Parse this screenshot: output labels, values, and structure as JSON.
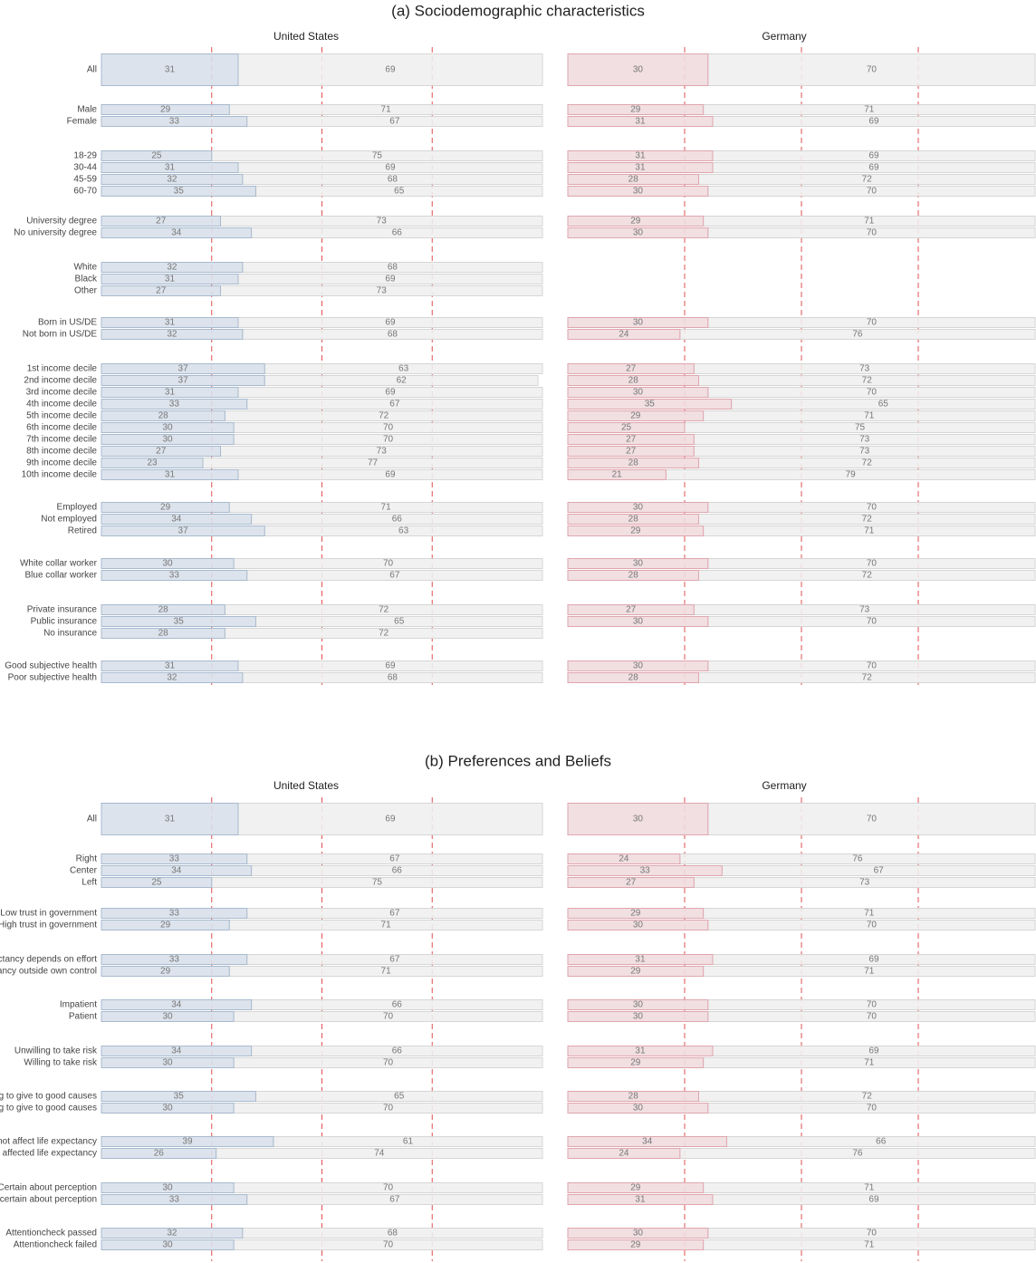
{
  "chart_data": {
    "type": "stacked-bar",
    "xlim": [
      0,
      100
    ],
    "ref_lines": [
      25,
      50,
      75
    ],
    "countries": [
      {
        "name": "United States",
        "color": "#d8e0ea",
        "stroke": "#a8bace"
      },
      {
        "name": "Germany",
        "color": "#efdcdf",
        "stroke": "#dfa6ae"
      }
    ],
    "rest_color": "#efefef",
    "rest_stroke": "#d6d6d6",
    "ref_color": "#e05050",
    "panels": [
      {
        "title": "(a) Sociodemographic characteristics",
        "groups": [
          [
            {
              "label": "All",
              "values": [
                [
                  31,
                  69
                ],
                [
                  30,
                  70
                ]
              ]
            }
          ],
          [
            {
              "label": "Male",
              "values": [
                [
                  29,
                  71
                ],
                [
                  29,
                  71
                ]
              ]
            },
            {
              "label": "Female",
              "values": [
                [
                  33,
                  67
                ],
                [
                  31,
                  69
                ]
              ]
            }
          ],
          [
            {
              "label": "18-29",
              "values": [
                [
                  25,
                  75
                ],
                [
                  31,
                  69
                ]
              ]
            },
            {
              "label": "30-44",
              "values": [
                [
                  31,
                  69
                ],
                [
                  31,
                  69
                ]
              ]
            },
            {
              "label": "45-59",
              "values": [
                [
                  32,
                  68
                ],
                [
                  28,
                  72
                ]
              ]
            },
            {
              "label": "60-70",
              "values": [
                [
                  35,
                  65
                ],
                [
                  30,
                  70
                ]
              ]
            }
          ],
          [
            {
              "label": "University degree",
              "values": [
                [
                  27,
                  73
                ],
                [
                  29,
                  71
                ]
              ]
            },
            {
              "label": "No university degree",
              "values": [
                [
                  34,
                  66
                ],
                [
                  30,
                  70
                ]
              ]
            }
          ],
          [
            {
              "label": "White",
              "values": [
                [
                  32,
                  68
                ],
                null
              ]
            },
            {
              "label": "Black",
              "values": [
                [
                  31,
                  69
                ],
                null
              ]
            },
            {
              "label": "Other",
              "values": [
                [
                  27,
                  73
                ],
                null
              ]
            }
          ],
          [
            {
              "label": "Born in US/DE",
              "values": [
                [
                  31,
                  69
                ],
                [
                  30,
                  70
                ]
              ]
            },
            {
              "label": "Not born in US/DE",
              "values": [
                [
                  32,
                  68
                ],
                [
                  24,
                  76
                ]
              ]
            }
          ],
          [
            {
              "label": "1st income decile",
              "values": [
                [
                  37,
                  63
                ],
                [
                  27,
                  73
                ]
              ]
            },
            {
              "label": "2nd income decile",
              "values": [
                [
                  37,
                  62
                ],
                [
                  28,
                  72
                ]
              ]
            },
            {
              "label": "3rd income decile",
              "values": [
                [
                  31,
                  69
                ],
                [
                  30,
                  70
                ]
              ]
            },
            {
              "label": "4th income decile",
              "values": [
                [
                  33,
                  67
                ],
                [
                  35,
                  65
                ]
              ]
            },
            {
              "label": "5th income decile",
              "values": [
                [
                  28,
                  72
                ],
                [
                  29,
                  71
                ]
              ]
            },
            {
              "label": "6th income decile",
              "values": [
                [
                  30,
                  70
                ],
                [
                  25,
                  75
                ]
              ]
            },
            {
              "label": "7th income decile",
              "values": [
                [
                  30,
                  70
                ],
                [
                  27,
                  73
                ]
              ]
            },
            {
              "label": "8th income decile",
              "values": [
                [
                  27,
                  73
                ],
                [
                  27,
                  73
                ]
              ]
            },
            {
              "label": "9th income decile",
              "values": [
                [
                  23,
                  77
                ],
                [
                  28,
                  72
                ]
              ]
            },
            {
              "label": "10th income decile",
              "values": [
                [
                  31,
                  69
                ],
                [
                  21,
                  79
                ]
              ]
            }
          ],
          [
            {
              "label": "Employed",
              "values": [
                [
                  29,
                  71
                ],
                [
                  30,
                  70
                ]
              ]
            },
            {
              "label": "Not employed",
              "values": [
                [
                  34,
                  66
                ],
                [
                  28,
                  72
                ]
              ]
            },
            {
              "label": "Retired",
              "values": [
                [
                  37,
                  63
                ],
                [
                  29,
                  71
                ]
              ]
            }
          ],
          [
            {
              "label": "White collar worker",
              "values": [
                [
                  30,
                  70
                ],
                [
                  30,
                  70
                ]
              ]
            },
            {
              "label": "Blue collar worker",
              "values": [
                [
                  33,
                  67
                ],
                [
                  28,
                  72
                ]
              ]
            }
          ],
          [
            {
              "label": "Private insurance",
              "values": [
                [
                  28,
                  72
                ],
                [
                  27,
                  73
                ]
              ]
            },
            {
              "label": "Public insurance",
              "values": [
                [
                  35,
                  65
                ],
                [
                  30,
                  70
                ]
              ]
            },
            {
              "label": "No insurance",
              "values": [
                [
                  28,
                  72
                ],
                null
              ]
            }
          ],
          [
            {
              "label": "Good subjective health",
              "values": [
                [
                  31,
                  69
                ],
                [
                  30,
                  70
                ]
              ]
            },
            {
              "label": "Poor subjective health",
              "values": [
                [
                  32,
                  68
                ],
                [
                  28,
                  72
                ]
              ]
            }
          ]
        ]
      },
      {
        "title": "(b) Preferences and Beliefs",
        "groups": [
          [
            {
              "label": "All",
              "values": [
                [
                  31,
                  69
                ],
                [
                  30,
                  70
                ]
              ]
            }
          ],
          [
            {
              "label": "Right",
              "values": [
                [
                  33,
                  67
                ],
                [
                  24,
                  76
                ]
              ]
            },
            {
              "label": "Center",
              "values": [
                [
                  34,
                  66
                ],
                [
                  33,
                  67
                ]
              ]
            },
            {
              "label": "Left",
              "values": [
                [
                  25,
                  75
                ],
                [
                  27,
                  73
                ]
              ]
            }
          ],
          [
            {
              "label": "Low trust in government",
              "values": [
                [
                  33,
                  67
                ],
                [
                  29,
                  71
                ]
              ]
            },
            {
              "label": "High trust in government",
              "values": [
                [
                  29,
                  71
                ],
                [
                  30,
                  70
                ]
              ]
            }
          ],
          [
            {
              "label": "Life expectancy depends on effort",
              "values": [
                [
                  33,
                  67
                ],
                [
                  31,
                  69
                ]
              ]
            },
            {
              "label": "Life expectancy outside own control",
              "values": [
                [
                  29,
                  71
                ],
                [
                  29,
                  71
                ]
              ]
            }
          ],
          [
            {
              "label": "Impatient",
              "values": [
                [
                  34,
                  66
                ],
                [
                  30,
                  70
                ]
              ]
            },
            {
              "label": "Patient",
              "values": [
                [
                  30,
                  70
                ],
                [
                  30,
                  70
                ]
              ]
            }
          ],
          [
            {
              "label": "Unwilling to take risk",
              "values": [
                [
                  34,
                  66
                ],
                [
                  31,
                  69
                ]
              ]
            },
            {
              "label": "Willing to take risk",
              "values": [
                [
                  30,
                  70
                ],
                [
                  29,
                  71
                ]
              ]
            }
          ],
          [
            {
              "label": "Unwilling to give to good causes",
              "values": [
                [
                  35,
                  65
                ],
                [
                  28,
                  72
                ]
              ]
            },
            {
              "label": "Willing to give to good causes",
              "values": [
                [
                  30,
                  70
                ],
                [
                  30,
                  70
                ]
              ]
            }
          ],
          [
            {
              "label": "Covid did not affect life expectancy",
              "values": [
                [
                  39,
                  61
                ],
                [
                  34,
                  66
                ]
              ]
            },
            {
              "label": "Covid affected life expectancy",
              "values": [
                [
                  26,
                  74
                ],
                [
                  24,
                  76
                ]
              ]
            }
          ],
          [
            {
              "label": "Certain about perception",
              "values": [
                [
                  30,
                  70
                ],
                [
                  29,
                  71
                ]
              ]
            },
            {
              "label": "Uncertain about perception",
              "values": [
                [
                  33,
                  67
                ],
                [
                  31,
                  69
                ]
              ]
            }
          ],
          [
            {
              "label": "Attentioncheck passed",
              "values": [
                [
                  32,
                  68
                ],
                [
                  30,
                  70
                ]
              ]
            },
            {
              "label": "Attentioncheck failed",
              "values": [
                [
                  30,
                  70
                ],
                [
                  29,
                  71
                ]
              ]
            }
          ]
        ]
      }
    ]
  }
}
